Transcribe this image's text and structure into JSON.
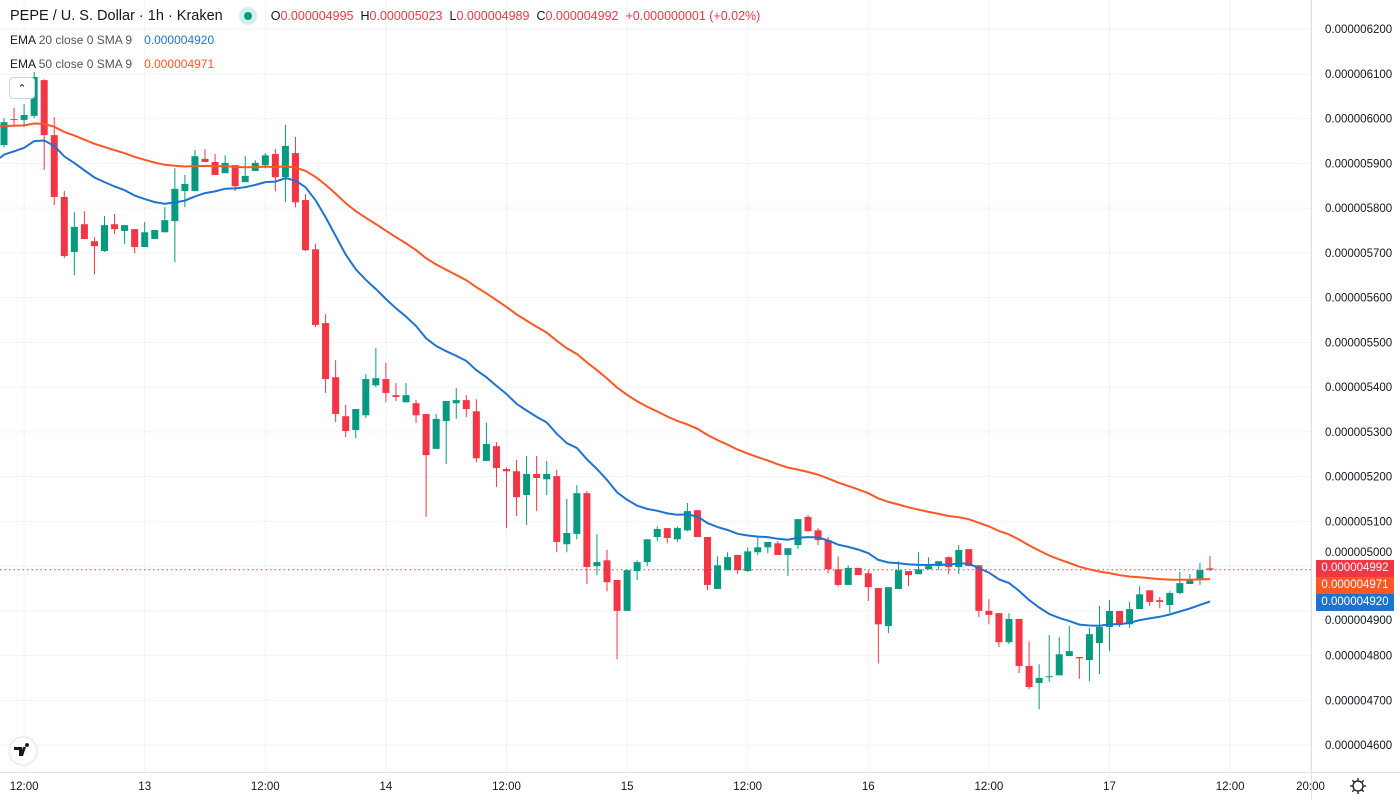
{
  "header": {
    "title": "PEPE / U. S. Dollar · 1h · Kraken",
    "status_icon": "market-open-dot-icon",
    "ohlc": {
      "o_label": "O",
      "o": "0.000004995",
      "h_label": "H",
      "h": "0.000005023",
      "l_label": "L",
      "l": "0.000004989",
      "c_label": "C",
      "c": "0.000004992",
      "change": "+0.000000001 (+0.02%)"
    }
  },
  "indicators": [
    {
      "name": "EMA",
      "args": "20 close 0 SMA 9",
      "value": "0.000004920",
      "color": "#1E73D2"
    },
    {
      "name": "EMA",
      "args": "50 close 0 SMA 9",
      "value": "0.000004971",
      "color": "#FF5722"
    }
  ],
  "collapse_icon": "chevron-up-icon",
  "price_badges": [
    {
      "value": "0.000004992",
      "color": "#F23645"
    },
    {
      "value": "0.000004971",
      "color": "#FF5722"
    },
    {
      "value": "0.000004920",
      "color": "#1E73D2"
    }
  ],
  "settings_icon": "gear-icon",
  "logo": "TV",
  "chart_data": {
    "type": "candlestick",
    "interval": "1h",
    "colors": {
      "up": "#089981",
      "down": "#F23645",
      "grid": "#F0F3FA"
    },
    "y_range": [
      4.54e-06,
      6.265e-06
    ],
    "y_ticks": [
      "0.000006200",
      "0.000006100",
      "0.000006000",
      "0.000005900",
      "0.000005800",
      "0.000005700",
      "0.000005600",
      "0.000005500",
      "0.000005400",
      "0.000005300",
      "0.000005200",
      "0.000005100",
      "0.000005000",
      "0.000004900",
      "0.000004800",
      "0.000004700",
      "0.000004600"
    ],
    "x_ticks": [
      "12:00",
      "13",
      "12:00",
      "14",
      "12:00",
      "15",
      "12:00",
      "16",
      "12:00",
      "17",
      "12:00",
      "20:00"
    ],
    "grid": true,
    "last_price_line": "0.000004992",
    "columns": [
      "time",
      "open",
      "high",
      "low",
      "close"
    ],
    "candles": [
      [
        "12 10:00",
        5.941e-06,
        6.001e-06,
        5.936e-06,
        5.992e-06
      ],
      [
        "12 11:00",
        5.999e-06,
        6.024e-06,
        5.986e-06,
        5.997e-06
      ],
      [
        "12 12:00",
        5.997e-06,
        6.032e-06,
        5.981e-06,
        6.008e-06
      ],
      [
        "12 13:00",
        6.006e-06,
        6.104e-06,
        6.001e-06,
        6.093e-06
      ],
      [
        "12 14:00",
        6.086e-06,
        6.088e-06,
        5.885e-06,
        5.963e-06
      ],
      [
        "12 15:00",
        5.963e-06,
        6.003e-06,
        5.807e-06,
        5.825e-06
      ],
      [
        "12 16:00",
        5.825e-06,
        5.838e-06,
        5.688e-06,
        5.693e-06
      ],
      [
        "12 17:00",
        5.702e-06,
        5.791e-06,
        5.65e-06,
        5.758e-06
      ],
      [
        "12 18:00",
        5.764e-06,
        5.793e-06,
        5.731e-06,
        5.731e-06
      ],
      [
        "12 19:00",
        5.726e-06,
        5.735e-06,
        5.652e-06,
        5.715e-06
      ],
      [
        "12 20:00",
        5.704e-06,
        5.782e-06,
        5.702e-06,
        5.762e-06
      ],
      [
        "12 21:00",
        5.764e-06,
        5.787e-06,
        5.742e-06,
        5.753e-06
      ],
      [
        "12 22:00",
        5.749e-06,
        5.762e-06,
        5.72e-06,
        5.762e-06
      ],
      [
        "12 23:00",
        5.753e-06,
        5.753e-06,
        5.699e-06,
        5.713e-06
      ],
      [
        "13 00:00",
        5.713e-06,
        5.769e-06,
        5.713e-06,
        5.746e-06
      ],
      [
        "13 01:00",
        5.731e-06,
        5.751e-06,
        5.731e-06,
        5.751e-06
      ],
      [
        "13 02:00",
        5.746e-06,
        5.802e-06,
        5.746e-06,
        5.773e-06
      ],
      [
        "13 03:00",
        5.771e-06,
        5.889e-06,
        5.679e-06,
        5.843e-06
      ],
      [
        "13 04:00",
        5.838e-06,
        5.874e-06,
        5.802e-06,
        5.854e-06
      ],
      [
        "13 05:00",
        5.838e-06,
        5.93e-06,
        5.838e-06,
        5.916e-06
      ],
      [
        "13 06:00",
        5.91e-06,
        5.932e-06,
        5.903e-06,
        5.903e-06
      ],
      [
        "13 07:00",
        5.903e-06,
        5.921e-06,
        5.874e-06,
        5.874e-06
      ],
      [
        "13 08:00",
        5.878e-06,
        5.918e-06,
        5.878e-06,
        5.901e-06
      ],
      [
        "13 09:00",
        5.896e-06,
        5.896e-06,
        5.838e-06,
        5.849e-06
      ],
      [
        "13 10:00",
        5.858e-06,
        5.916e-06,
        5.858e-06,
        5.872e-06
      ],
      [
        "13 11:00",
        5.883e-06,
        5.907e-06,
        5.883e-06,
        5.901e-06
      ],
      [
        "13 12:00",
        5.896e-06,
        5.923e-06,
        5.889e-06,
        5.918e-06
      ],
      [
        "13 13:00",
        5.921e-06,
        5.932e-06,
        5.838e-06,
        5.869e-06
      ],
      [
        "13 14:00",
        5.869e-06,
        5.986e-06,
        5.813e-06,
        5.939e-06
      ],
      [
        "13 15:00",
        5.923e-06,
        5.959e-06,
        5.802e-06,
        5.813e-06
      ],
      [
        "13 16:00",
        5.818e-06,
        5.831e-06,
        5.704e-06,
        5.706e-06
      ],
      [
        "13 17:00",
        5.708e-06,
        5.72e-06,
        5.534e-06,
        5.539e-06
      ],
      [
        "13 18:00",
        5.543e-06,
        5.563e-06,
        5.387e-06,
        5.418e-06
      ],
      [
        "13 19:00",
        5.422e-06,
        5.46e-06,
        5.322e-06,
        5.34e-06
      ],
      [
        "13 20:00",
        5.335e-06,
        5.36e-06,
        5.288e-06,
        5.302e-06
      ],
      [
        "13 21:00",
        5.304e-06,
        5.351e-06,
        5.286e-06,
        5.351e-06
      ],
      [
        "13 22:00",
        5.337e-06,
        5.429e-06,
        5.331e-06,
        5.418e-06
      ],
      [
        "13 23:00",
        5.404e-06,
        5.487e-06,
        5.4e-06,
        5.42e-06
      ],
      [
        "14 00:00",
        5.418e-06,
        5.454e-06,
        5.366e-06,
        5.387e-06
      ],
      [
        "14 01:00",
        5.382e-06,
        5.409e-06,
        5.369e-06,
        5.378e-06
      ],
      [
        "14 02:00",
        5.366e-06,
        5.409e-06,
        5.366e-06,
        5.382e-06
      ],
      [
        "14 03:00",
        5.364e-06,
        5.371e-06,
        5.32e-06,
        5.337e-06
      ],
      [
        "14 04:00",
        5.34e-06,
        5.34e-06,
        5.11e-06,
        5.248e-06
      ],
      [
        "14 05:00",
        5.262e-06,
        5.34e-06,
        5.262e-06,
        5.329e-06
      ],
      [
        "14 06:00",
        5.324e-06,
        5.369e-06,
        5.228e-06,
        5.369e-06
      ],
      [
        "14 07:00",
        5.364e-06,
        5.398e-06,
        5.329e-06,
        5.371e-06
      ],
      [
        "14 08:00",
        5.371e-06,
        5.382e-06,
        5.333e-06,
        5.351e-06
      ],
      [
        "14 09:00",
        5.346e-06,
        5.373e-06,
        5.232e-06,
        5.241e-06
      ],
      [
        "14 10:00",
        5.235e-06,
        5.32e-06,
        5.235e-06,
        5.273e-06
      ],
      [
        "14 11:00",
        5.268e-06,
        5.277e-06,
        5.177e-06,
        5.219e-06
      ],
      [
        "14 12:00",
        5.217e-06,
        5.221e-06,
        5.085e-06,
        5.212e-06
      ],
      [
        "14 13:00",
        5.212e-06,
        5.237e-06,
        5.112e-06,
        5.154e-06
      ],
      [
        "14 14:00",
        5.159e-06,
        5.246e-06,
        5.092e-06,
        5.206e-06
      ],
      [
        "14 15:00",
        5.206e-06,
        5.246e-06,
        5.123e-06,
        5.197e-06
      ],
      [
        "14 16:00",
        5.194e-06,
        5.235e-06,
        5.159e-06,
        5.206e-06
      ],
      [
        "14 17:00",
        5.201e-06,
        5.215e-06,
        5.031e-06,
        5.054e-06
      ],
      [
        "14 18:00",
        5.049e-06,
        5.15e-06,
        5.031e-06,
        5.074e-06
      ],
      [
        "14 19:00",
        5.072e-06,
        5.181e-06,
        5.06e-06,
        5.163e-06
      ],
      [
        "14 20:00",
        5.163e-06,
        5.168e-06,
        4.96e-06,
        4.998e-06
      ],
      [
        "14 21:00",
        5e-06,
        5.072e-06,
        4.98e-06,
        5.009e-06
      ],
      [
        "14 22:00",
        5.013e-06,
        5.036e-06,
        4.944e-06,
        4.964e-06
      ],
      [
        "14 23:00",
        4.969e-06,
        4.969e-06,
        4.792e-06,
        4.9e-06
      ],
      [
        "15 00:00",
        4.9e-06,
        4.991e-06,
        4.9e-06,
        4.991e-06
      ],
      [
        "15 01:00",
        4.989e-06,
        5.013e-06,
        4.969e-06,
        5.009e-06
      ],
      [
        "15 02:00",
        5.009e-06,
        5.06e-06,
        5e-06,
        5.06e-06
      ],
      [
        "15 03:00",
        5.065e-06,
        5.089e-06,
        5.056e-06,
        5.083e-06
      ],
      [
        "15 04:00",
        5.085e-06,
        5.085e-06,
        5.051e-06,
        5.063e-06
      ],
      [
        "15 05:00",
        5.06e-06,
        5.089e-06,
        5.054e-06,
        5.085e-06
      ],
      [
        "15 06:00",
        5.08e-06,
        5.141e-06,
        5.078e-06,
        5.123e-06
      ],
      [
        "15 07:00",
        5.125e-06,
        5.125e-06,
        5.065e-06,
        5.065e-06
      ],
      [
        "15 08:00",
        5.065e-06,
        5.065e-06,
        4.946e-06,
        4.958e-06
      ],
      [
        "15 09:00",
        4.949e-06,
        5.022e-06,
        4.949e-06,
        5.002e-06
      ],
      [
        "15 10:00",
        4.991e-06,
        5.031e-06,
        4.991e-06,
        5.02e-06
      ],
      [
        "15 11:00",
        5.025e-06,
        5.025e-06,
        4.982e-06,
        4.991e-06
      ],
      [
        "15 12:00",
        4.989e-06,
        5.042e-06,
        4.987e-06,
        5.033e-06
      ],
      [
        "15 13:00",
        5.031e-06,
        5.067e-06,
        5.025e-06,
        5.042e-06
      ],
      [
        "15 14:00",
        5.042e-06,
        5.054e-06,
        5.029e-06,
        5.054e-06
      ],
      [
        "15 15:00",
        5.051e-06,
        5.056e-06,
        5.025e-06,
        5.025e-06
      ],
      [
        "15 16:00",
        5.025e-06,
        5.04e-06,
        4.978e-06,
        5.04e-06
      ],
      [
        "15 17:00",
        5.047e-06,
        5.105e-06,
        5.038e-06,
        5.105e-06
      ],
      [
        "15 18:00",
        5.11e-06,
        5.114e-06,
        5.078e-06,
        5.078e-06
      ],
      [
        "15 19:00",
        5.08e-06,
        5.085e-06,
        5.047e-06,
        5.058e-06
      ],
      [
        "15 20:00",
        5.058e-06,
        5.065e-06,
        4.984e-06,
        4.993e-06
      ],
      [
        "15 21:00",
        4.993e-06,
        5.022e-06,
        4.955e-06,
        4.958e-06
      ],
      [
        "15 22:00",
        4.958e-06,
        5.002e-06,
        4.958e-06,
        4.996e-06
      ],
      [
        "15 23:00",
        4.996e-06,
        4.996e-06,
        4.98e-06,
        4.98e-06
      ],
      [
        "16 00:00",
        4.984e-06,
        4.991e-06,
        4.922e-06,
        4.953e-06
      ],
      [
        "16 01:00",
        4.951e-06,
        4.951e-06,
        4.783e-06,
        4.87e-06
      ],
      [
        "16 02:00",
        4.866e-06,
        4.953e-06,
        4.85e-06,
        4.953e-06
      ],
      [
        "16 03:00",
        4.949e-06,
        5.011e-06,
        4.949e-06,
        4.991e-06
      ],
      [
        "16 04:00",
        4.989e-06,
        4.989e-06,
        4.955e-06,
        4.98e-06
      ],
      [
        "16 05:00",
        4.982e-06,
        5.031e-06,
        4.982e-06,
        4.993e-06
      ],
      [
        "16 06:00",
        4.993e-06,
        5.02e-06,
        4.993e-06,
        5e-06
      ],
      [
        "16 07:00",
        5e-06,
        5.011e-06,
        4.991e-06,
        5.011e-06
      ],
      [
        "16 08:00",
        5.02e-06,
        5.022e-06,
        4.982e-06,
        4.998e-06
      ],
      [
        "16 09:00",
        4.998e-06,
        5.047e-06,
        4.982e-06,
        5.036e-06
      ],
      [
        "16 10:00",
        5.038e-06,
        5.038e-06,
        5e-06,
        5e-06
      ],
      [
        "16 11:00",
        5.002e-06,
        5.002e-06,
        4.886e-06,
        4.9e-06
      ],
      [
        "16 12:00",
        4.9e-06,
        4.926e-06,
        4.87e-06,
        4.891e-06
      ],
      [
        "16 13:00",
        4.895e-06,
        4.895e-06,
        4.819e-06,
        4.83e-06
      ],
      [
        "16 14:00",
        4.83e-06,
        4.895e-06,
        4.826e-06,
        4.882e-06
      ],
      [
        "16 15:00",
        4.882e-06,
        4.882e-06,
        4.761e-06,
        4.777e-06
      ],
      [
        "16 16:00",
        4.777e-06,
        4.832e-06,
        4.725e-06,
        4.73e-06
      ],
      [
        "16 17:00",
        4.739e-06,
        4.781e-06,
        4.68e-06,
        4.75e-06
      ],
      [
        "16 18:00",
        4.752e-06,
        4.846e-06,
        4.741e-06,
        4.754e-06
      ],
      [
        "16 19:00",
        4.756e-06,
        4.841e-06,
        4.756e-06,
        4.803e-06
      ],
      [
        "16 20:00",
        4.799e-06,
        4.866e-06,
        4.799e-06,
        4.81e-06
      ],
      [
        "16 21:00",
        4.797e-06,
        4.797e-06,
        4.748e-06,
        4.794e-06
      ],
      [
        "16 22:00",
        4.79e-06,
        4.862e-06,
        4.743e-06,
        4.848e-06
      ],
      [
        "16 23:00",
        4.828e-06,
        4.911e-06,
        4.759e-06,
        4.864e-06
      ],
      [
        "17 00:00",
        4.864e-06,
        4.924e-06,
        4.81e-06,
        4.9e-06
      ],
      [
        "17 01:00",
        4.9e-06,
        4.9e-06,
        4.864e-06,
        4.87e-06
      ],
      [
        "17 02:00",
        4.87e-06,
        4.92e-06,
        4.862e-06,
        4.904e-06
      ],
      [
        "17 03:00",
        4.904e-06,
        4.955e-06,
        4.904e-06,
        4.937e-06
      ],
      [
        "17 04:00",
        4.946e-06,
        4.946e-06,
        4.911e-06,
        4.92e-06
      ],
      [
        "17 05:00",
        4.924e-06,
        4.931e-06,
        4.906e-06,
        4.92e-06
      ],
      [
        "17 06:00",
        4.913e-06,
        4.944e-06,
        4.895e-06,
        4.94e-06
      ],
      [
        "17 07:00",
        4.94e-06,
        4.987e-06,
        4.937e-06,
        4.962e-06
      ],
      [
        "17 08:00",
        4.96e-06,
        4.982e-06,
        4.96e-06,
        4.969e-06
      ],
      [
        "17 09:00",
        4.969e-06,
        5.007e-06,
        4.958e-06,
        4.991e-06
      ],
      [
        "17 10:00",
        4.995e-06,
        5.023e-06,
        4.989e-06,
        4.992e-06
      ]
    ]
  }
}
